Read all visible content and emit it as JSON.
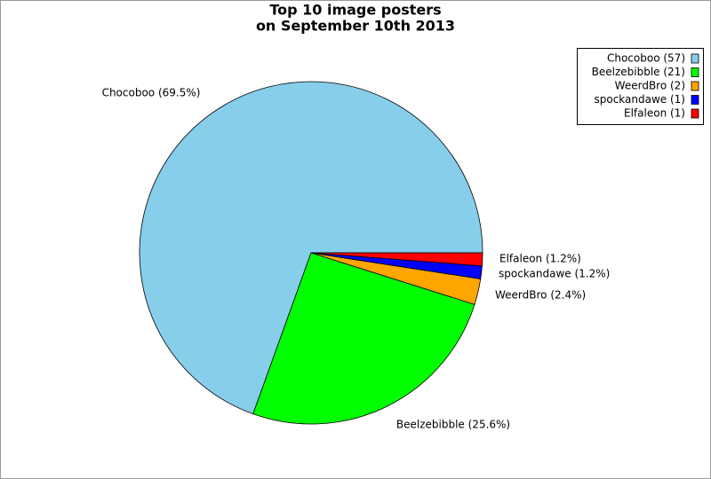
{
  "chart_data": {
    "type": "pie",
    "title": [
      "Top 10 image posters",
      "on September 10th 2013"
    ],
    "labels": [
      "Chocoboo (57)",
      "Beelzebibble (21)",
      "WeerdBro (2)",
      "spockandawe (1)",
      "Elfaleon (1)"
    ],
    "values": [
      57,
      21,
      2,
      1,
      1
    ],
    "value_labels": [
      "Chocoboo (69.5%)",
      "Beelzebibble (25.6%)",
      "WeerdBro (2.4%)",
      "spockandawe (1.2%)",
      "Elfaleon (1.2%)"
    ],
    "colors": [
      "#87ceeb",
      "#00ff00",
      "#ffa500",
      "#0000ff",
      "#ff0000"
    ],
    "legend": "top-right"
  }
}
